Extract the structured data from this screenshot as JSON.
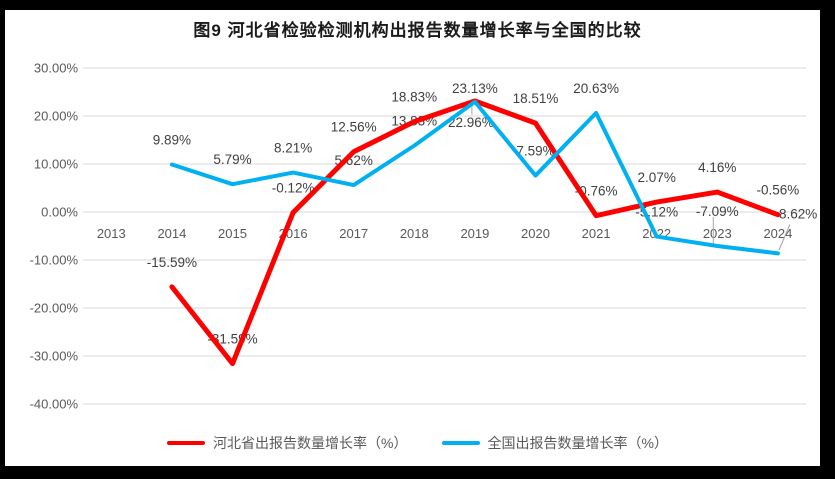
{
  "chart_data": {
    "type": "line",
    "title": "图9 河北省检验检测机构出报告数量增长率与全国的比较",
    "categories": [
      "2013",
      "2014",
      "2015",
      "2016",
      "2017",
      "2018",
      "2019",
      "2020",
      "2021",
      "2022",
      "2023",
      "2024"
    ],
    "series": [
      {
        "name": "河北省出报告数量增长率（%）",
        "color": "#FF0000",
        "values": [
          null,
          -15.59,
          -31.59,
          -0.12,
          12.56,
          18.83,
          23.13,
          18.51,
          -0.76,
          2.07,
          4.16,
          -0.56
        ],
        "labels": [
          "",
          "-15.59%",
          "-31.59%",
          "-0.12%",
          "12.56%",
          "18.83%",
          "23.13%",
          "18.51%",
          "-0.76%",
          "2.07%",
          "4.16%",
          "-0.56%"
        ]
      },
      {
        "name": "全国出报告数量增长率（%）",
        "color": "#00B0F0",
        "values": [
          null,
          9.89,
          5.79,
          8.21,
          5.62,
          13.83,
          22.96,
          7.59,
          20.63,
          -5.12,
          -7.09,
          -8.62
        ],
        "labels": [
          "",
          "9.89%",
          "5.79%",
          "8.21%",
          "5.62%",
          "13.83%",
          "22.96%",
          "7.59%",
          "20.63%",
          "-5.12%",
          "-7.09%",
          "-8.62%"
        ]
      }
    ],
    "y_axis": {
      "tick_labels": [
        "30.00%",
        "20.00%",
        "10.00%",
        "0.00%",
        "-10.00%",
        "-20.00%",
        "-30.00%",
        "-40.00%"
      ],
      "tick_values": [
        30,
        20,
        10,
        0,
        -10,
        -20,
        -30,
        -40
      ],
      "min": -40,
      "max": 30
    },
    "grid": true,
    "data_labels": true,
    "legend_position": "bottom",
    "colors": {
      "gridline": "#D9D9D9",
      "axis_text": "#595959",
      "data_label_text": "#404040",
      "leader_line": "#A6A6A6",
      "background": "#FFFFFF",
      "border": "#000000"
    }
  }
}
